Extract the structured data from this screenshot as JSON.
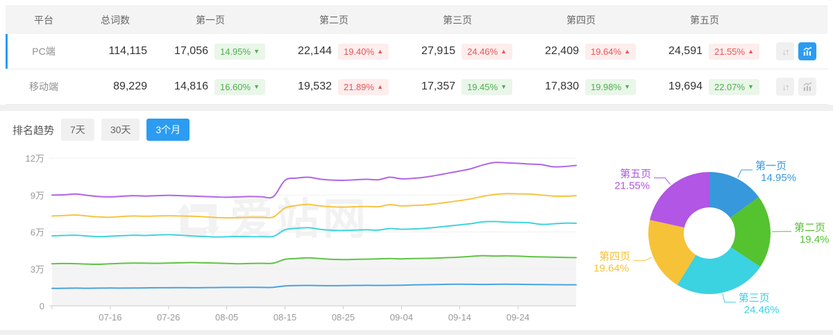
{
  "icons": {
    "sort": "↓↑"
  },
  "colors": {
    "accent_blue": "#2b9cf2",
    "badge_green": "#4cb04c",
    "badge_red": "#e65555",
    "page1_blue": "#4aa2e2",
    "page2_green": "#5fc445",
    "page3_cyan": "#40d2e0",
    "page4_yellow": "#f7c440",
    "page5_purple": "#b065e5"
  },
  "table": {
    "columns": [
      "平台",
      "总词数",
      "第一页",
      "第二页",
      "第三页",
      "第四页",
      "第五页"
    ],
    "rows": [
      {
        "platform": "PC端",
        "total": "114,115",
        "selected_class": "selected",
        "sort_state": "",
        "chart_state": "active",
        "pages": [
          {
            "value": "17,056",
            "pct": "14.95%",
            "arrow": "▼",
            "tone": "green"
          },
          {
            "value": "22,144",
            "pct": "19.40%",
            "arrow": "▲",
            "tone": "red"
          },
          {
            "value": "27,915",
            "pct": "24.46%",
            "arrow": "▲",
            "tone": "red"
          },
          {
            "value": "22,409",
            "pct": "19.64%",
            "arrow": "▲",
            "tone": "red"
          },
          {
            "value": "24,591",
            "pct": "21.55%",
            "arrow": "▲",
            "tone": "red"
          }
        ]
      },
      {
        "platform": "移动端",
        "total": "89,229",
        "selected_class": "",
        "sort_state": "",
        "chart_state": "",
        "pages": [
          {
            "value": "14,816",
            "pct": "16.60%",
            "arrow": "▼",
            "tone": "green"
          },
          {
            "value": "19,532",
            "pct": "21.89%",
            "arrow": "▲",
            "tone": "red"
          },
          {
            "value": "17,357",
            "pct": "19.45%",
            "arrow": "▼",
            "tone": "green"
          },
          {
            "value": "17,830",
            "pct": "19.98%",
            "arrow": "▼",
            "tone": "green"
          },
          {
            "value": "19,694",
            "pct": "22.07%",
            "arrow": "▼",
            "tone": "green"
          }
        ]
      }
    ]
  },
  "trend": {
    "title": "排名趋势",
    "ranges": [
      {
        "label": "7天",
        "state": ""
      },
      {
        "label": "30天",
        "state": ""
      },
      {
        "label": "3个月",
        "state": "active"
      }
    ]
  },
  "watermark": {
    "text": "爱站网"
  },
  "chart_data": [
    {
      "type": "line",
      "title": "排名趋势",
      "subtitle": "3个月",
      "xlabel": "",
      "ylabel": "",
      "unit": "万",
      "ylim": [
        0,
        12
      ],
      "grid": true,
      "grid_values": [
        0,
        3,
        6,
        9,
        12
      ],
      "ylabels": [
        "0",
        "3万",
        "6万",
        "9万",
        "12万"
      ],
      "x_tick_labels": [
        "07-16",
        "07-26",
        "08-05",
        "08-15",
        "08-25",
        "09-04",
        "09-14",
        "09-24"
      ],
      "x_tick_indices": [
        5,
        10,
        15,
        20,
        25,
        30,
        35,
        40
      ],
      "series": [
        {
          "id": "page-1",
          "name": "第一页",
          "color": "#4aa2e2",
          "values": [
            1.42,
            1.43,
            1.44,
            1.43,
            1.44,
            1.45,
            1.44,
            1.45,
            1.46,
            1.47,
            1.47,
            1.48,
            1.47,
            1.48,
            1.49,
            1.5,
            1.5,
            1.51,
            1.5,
            1.51,
            1.62,
            1.65,
            1.66,
            1.65,
            1.64,
            1.65,
            1.66,
            1.67,
            1.66,
            1.67,
            1.68,
            1.7,
            1.72,
            1.73,
            1.75,
            1.76,
            1.75,
            1.74,
            1.75,
            1.76,
            1.75,
            1.74,
            1.73,
            1.72,
            1.71,
            1.71
          ]
        },
        {
          "id": "page-2",
          "name": "第二页",
          "color": "#5fc445",
          "area_fill": "#f4f4f4",
          "values": [
            3.42,
            3.44,
            3.43,
            3.4,
            3.38,
            3.42,
            3.46,
            3.48,
            3.47,
            3.46,
            3.48,
            3.5,
            3.52,
            3.5,
            3.48,
            3.45,
            3.42,
            3.44,
            3.46,
            3.47,
            3.78,
            3.85,
            3.9,
            3.84,
            3.78,
            3.76,
            3.78,
            3.8,
            3.82,
            3.85,
            3.82,
            3.84,
            3.86,
            3.88,
            3.92,
            3.96,
            4.02,
            4.08,
            4.05,
            4.06,
            4.04,
            4.0,
            3.98,
            3.96,
            3.94,
            3.92
          ]
        },
        {
          "id": "page-3",
          "name": "第三页",
          "color": "#40d2e0",
          "values": [
            5.68,
            5.72,
            5.74,
            5.68,
            5.62,
            5.66,
            5.7,
            5.74,
            5.72,
            5.76,
            5.78,
            5.74,
            5.68,
            5.64,
            5.6,
            5.62,
            5.64,
            5.62,
            5.63,
            5.65,
            6.18,
            6.3,
            6.35,
            6.22,
            6.14,
            6.12,
            6.15,
            6.18,
            6.15,
            6.28,
            6.22,
            6.25,
            6.3,
            6.38,
            6.48,
            6.58,
            6.68,
            6.82,
            6.85,
            6.8,
            6.78,
            6.75,
            6.62,
            6.66,
            6.72,
            6.71
          ]
        },
        {
          "id": "page-4",
          "name": "第四页",
          "color": "#f7c440",
          "values": [
            7.3,
            7.34,
            7.38,
            7.3,
            7.22,
            7.2,
            7.26,
            7.3,
            7.28,
            7.3,
            7.32,
            7.3,
            7.28,
            7.24,
            7.18,
            7.15,
            7.18,
            7.2,
            7.2,
            7.22,
            7.95,
            8.15,
            8.25,
            8.12,
            8.05,
            8.02,
            8.05,
            8.08,
            8.05,
            8.22,
            8.12,
            8.15,
            8.2,
            8.3,
            8.42,
            8.55,
            8.7,
            8.9,
            9.05,
            9.12,
            9.1,
            9.08,
            9.0,
            8.92,
            8.9,
            8.95
          ]
        },
        {
          "id": "page-5",
          "name": "第五页",
          "color": "#b065e5",
          "values": [
            9.0,
            9.02,
            9.08,
            8.98,
            8.88,
            8.85,
            8.9,
            8.95,
            8.92,
            8.95,
            8.98,
            8.95,
            8.92,
            8.88,
            8.85,
            8.82,
            8.85,
            8.88,
            8.86,
            8.88,
            10.2,
            10.38,
            10.45,
            10.3,
            10.22,
            10.2,
            10.24,
            10.28,
            10.24,
            10.45,
            10.32,
            10.36,
            10.45,
            10.6,
            10.78,
            10.95,
            11.15,
            11.45,
            11.65,
            11.62,
            11.58,
            11.52,
            11.48,
            11.3,
            11.32,
            11.41
          ]
        }
      ]
    },
    {
      "type": "pie",
      "title": "",
      "donut": true,
      "slices": [
        {
          "id": "page-1",
          "label": "第一页",
          "pct": 14.95,
          "display": "14.95%",
          "color": "#3798db"
        },
        {
          "id": "page-2",
          "label": "第二页",
          "pct": 19.4,
          "display": "19.4%",
          "color": "#55c230"
        },
        {
          "id": "page-3",
          "label": "第三页",
          "pct": 24.46,
          "display": "24.46%",
          "color": "#3bd2e2"
        },
        {
          "id": "page-4",
          "label": "第四页",
          "pct": 19.64,
          "display": "19.64%",
          "color": "#f6c237"
        },
        {
          "id": "page-5",
          "label": "第五页",
          "pct": 21.55,
          "display": "21.55%",
          "color": "#b156e5"
        }
      ]
    }
  ]
}
